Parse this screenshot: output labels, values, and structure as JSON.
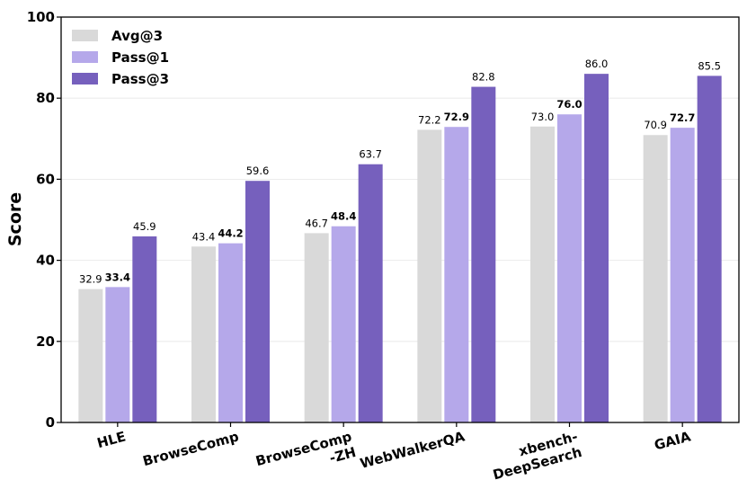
{
  "chart_data": {
    "type": "bar",
    "title": "",
    "xlabel": "",
    "ylabel": "Score",
    "ylim": [
      0,
      100
    ],
    "yticks": [
      0,
      20,
      40,
      60,
      80,
      100
    ],
    "grid": true,
    "legend_position": "top-left",
    "categories": [
      [
        "HLE"
      ],
      [
        "BrowseComp"
      ],
      [
        "BrowseComp",
        "-ZH"
      ],
      [
        "WebWalkerQA"
      ],
      [
        "xbench-",
        "DeepSearch"
      ],
      [
        "GAIA"
      ]
    ],
    "series": [
      {
        "name": "Avg@3",
        "color": "#d9d9d9",
        "bold_labels": false,
        "values": [
          32.9,
          43.4,
          46.7,
          72.2,
          73.0,
          70.9
        ],
        "labels": [
          "32.9",
          "43.4",
          "46.7",
          "72.2",
          "73.0",
          "70.9"
        ]
      },
      {
        "name": "Pass@1",
        "color": "#b5a8ea",
        "bold_labels": true,
        "values": [
          33.4,
          44.2,
          48.4,
          72.9,
          76.0,
          72.7
        ],
        "labels": [
          "33.4",
          "44.2",
          "48.4",
          "72.9",
          "76.0",
          "72.7"
        ]
      },
      {
        "name": "Pass@3",
        "color": "#7660bd",
        "bold_labels": false,
        "values": [
          45.9,
          59.6,
          63.7,
          82.8,
          86.0,
          85.5
        ],
        "labels": [
          "45.9",
          "59.6",
          "63.7",
          "82.8",
          "86.0",
          "85.5"
        ]
      }
    ]
  }
}
